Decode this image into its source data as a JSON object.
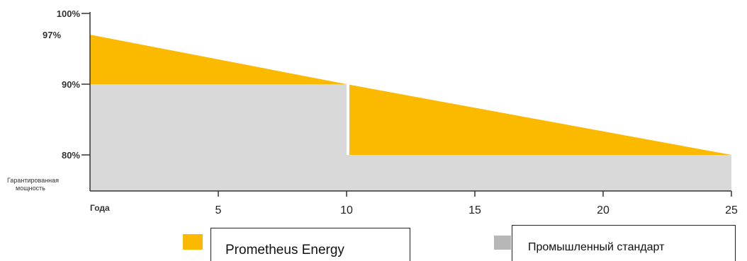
{
  "chart_data": {
    "type": "area",
    "xlabel": "Года",
    "ylabel_lines": [
      "Гарантированная",
      "мощность"
    ],
    "x_ticks": [
      5,
      10,
      15,
      20,
      25
    ],
    "y_ticks": [
      "100%",
      "97%",
      "90%",
      "80%"
    ],
    "y_tick_values": [
      100,
      97,
      90,
      80
    ],
    "xlim": [
      0,
      25
    ],
    "ylim": [
      70,
      100
    ],
    "grid": false,
    "legend_position": "bottom",
    "series": [
      {
        "name": "Prometheus Energy",
        "color": "#FBB900",
        "x": [
          0,
          10,
          10,
          25
        ],
        "values": [
          97,
          90,
          90,
          80
        ]
      },
      {
        "name": "Промышленный стандарт",
        "color": "#D9D9D9",
        "x": [
          0,
          10,
          10,
          25
        ],
        "values": [
          90,
          90,
          80,
          80
        ]
      }
    ]
  },
  "legend": {
    "items": [
      {
        "label": "Prometheus Energy",
        "color": "#FBB900"
      },
      {
        "label": "Промышленный стандарт",
        "color": "#B7B7B7"
      }
    ]
  }
}
